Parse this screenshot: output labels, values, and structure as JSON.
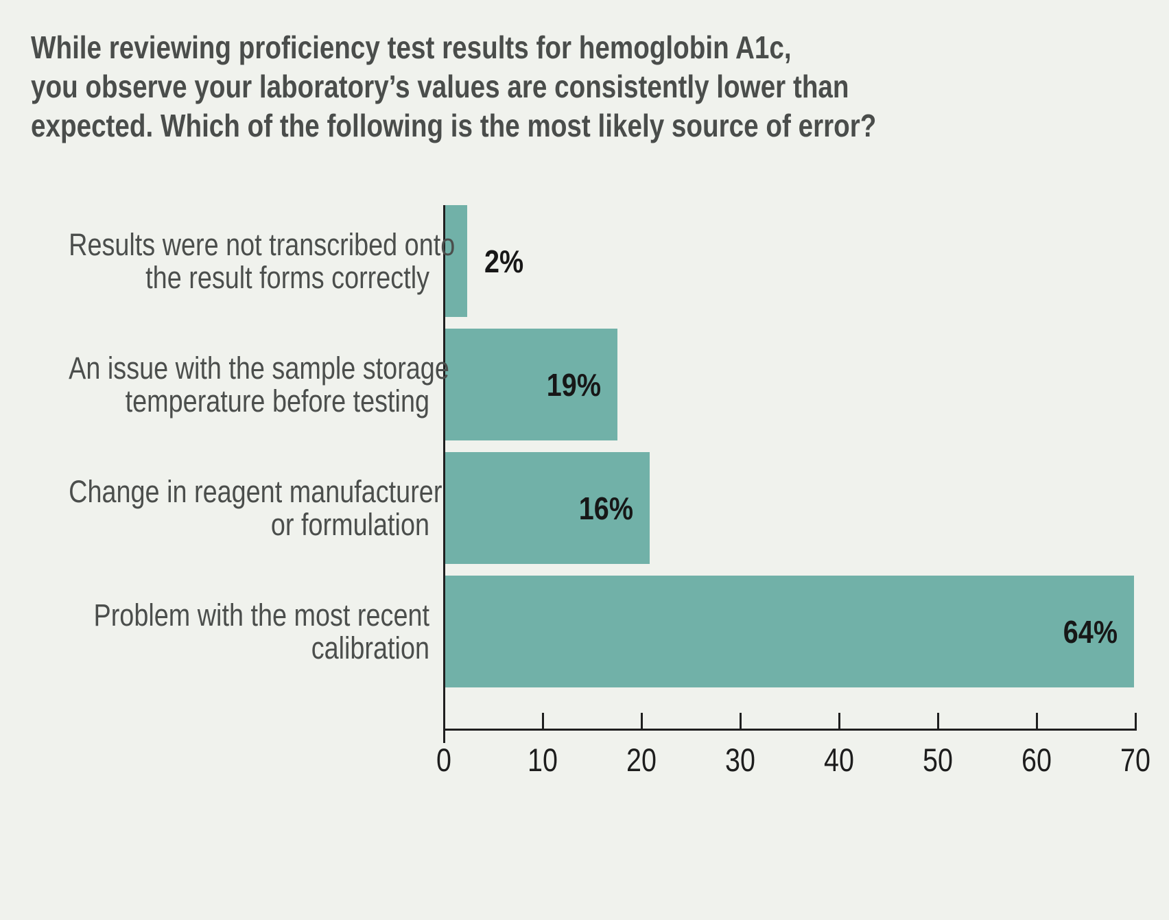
{
  "title": {
    "lines": [
      "While reviewing proficiency test results for hemoglobin A1c,",
      "you observe your laboratory’s values are consistently lower than",
      "expected. Which of the following is the most likely source of error?"
    ]
  },
  "chart_data": {
    "type": "bar",
    "orientation": "horizontal",
    "title": "While reviewing proficiency test results for hemoglobin A1c, you observe your laboratory’s values are consistently lower than expected. Which of the following is the most likely source of error?",
    "categories": [
      "Results were not transcribed onto the result forms correctly",
      "An issue with the sample storage temperature before testing",
      "Change in reagent manufacturer or formulation",
      "Problem with the most recent calibration"
    ],
    "category_label_lines": [
      [
        "Results were not transcribed onto",
        "the result forms correctly"
      ],
      [
        "An issue with the sample storage",
        "temperature before testing"
      ],
      [
        "Change in reagent manufacturer",
        "or formulation"
      ],
      [
        "Problem with the most recent",
        "calibration"
      ]
    ],
    "values": [
      2,
      19,
      16,
      64
    ],
    "value_labels": [
      "2%",
      "19%",
      "16%",
      "64%"
    ],
    "bar_drawn_extents_axis_units": [
      2.2,
      17.5,
      20.8,
      70
    ],
    "xlabel": "",
    "ylabel": "",
    "xlim": [
      0,
      70
    ],
    "x_ticks": [
      0,
      10,
      20,
      30,
      40,
      50,
      60,
      70
    ],
    "grid": "off",
    "legend": "none",
    "bar_color": "#71b1a8",
    "background_color": "#f0f2ed",
    "axis_color": "#1f1f1f",
    "label_text_color": "#4b4e4c",
    "value_text_color": "#171717"
  }
}
